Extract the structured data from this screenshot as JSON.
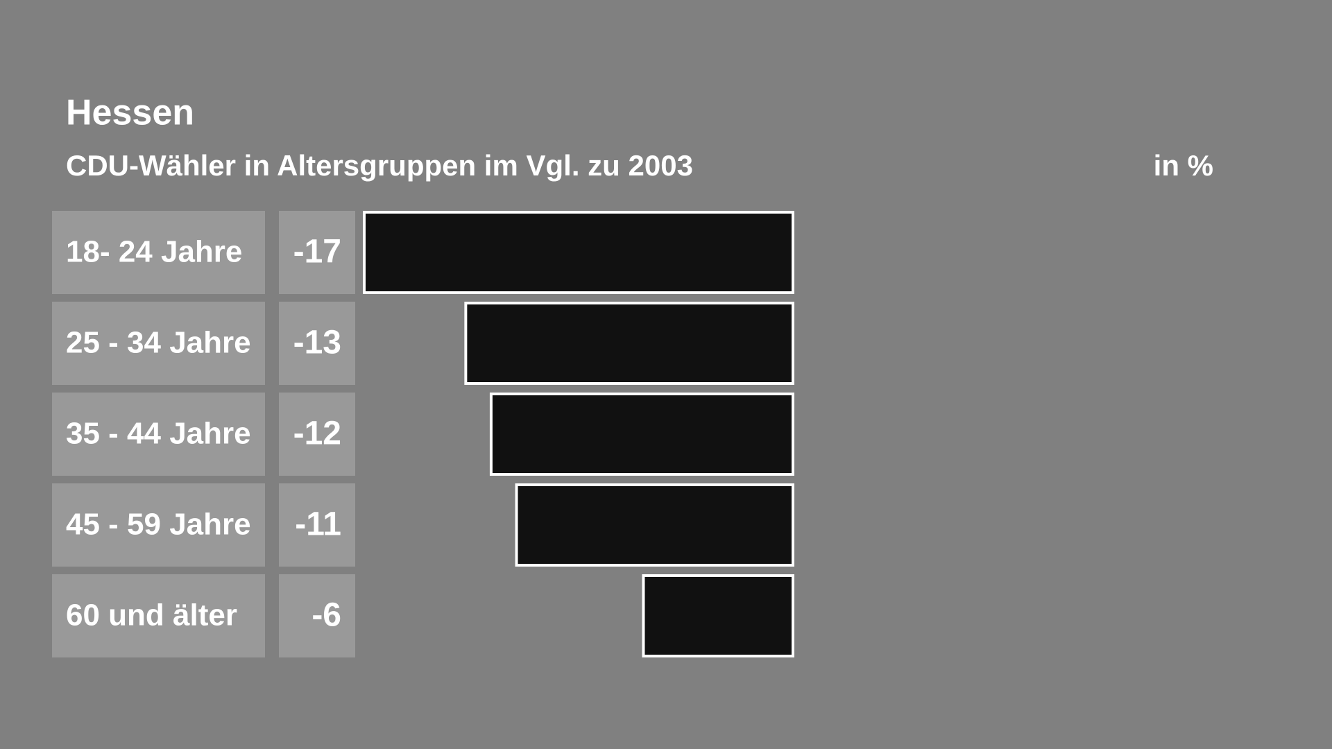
{
  "chart_data": {
    "type": "bar",
    "orientation": "horizontal",
    "title": "Hessen",
    "subtitle": "CDU-Wähler in Altersgruppen im Vgl. zu 2003",
    "unit_label": "in %",
    "categories": [
      "18- 24 Jahre",
      "25 - 34 Jahre",
      "35 - 44 Jahre",
      "45 - 59 Jahre",
      "60 und älter"
    ],
    "values": [
      -17,
      -13,
      -12,
      -11,
      -6
    ],
    "color": "#111111",
    "xlim": [
      -17,
      0
    ]
  }
}
